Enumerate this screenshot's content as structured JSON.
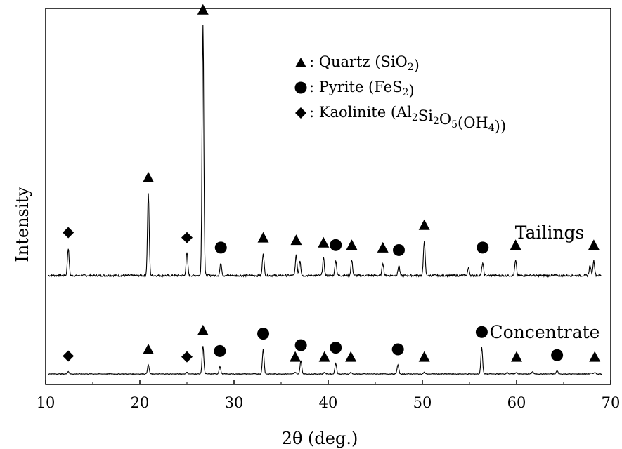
{
  "chart_data": {
    "type": "line",
    "xlabel": "2θ (deg.)",
    "ylabel": "Intensity",
    "xlim": [
      10,
      70
    ],
    "xticks": [
      "10",
      "20",
      "30",
      "40",
      "50",
      "60",
      "70"
    ],
    "y_ticks_shown": false,
    "grid": false,
    "legend": {
      "placement": "top-center",
      "entries": [
        {
          "marker": "triangle",
          "label": "Quartz",
          "formula_html": "(SiO<sub>2</sub>)"
        },
        {
          "marker": "circle",
          "label": "Pyrite",
          "formula_html": "(FeS<sub>2</sub>)"
        },
        {
          "marker": "diamond",
          "label": "Kaolinite",
          "formula_html": "(Al<sub>2</sub>Si<sub>2</sub>O<sub>5</sub>(OH<sub>4</sub>))"
        }
      ]
    },
    "series": [
      {
        "name": "Tailings",
        "baseline": 0.04,
        "peaks": [
          {
            "x": 12.4,
            "y": 0.11,
            "phase": "diamond"
          },
          {
            "x": 20.9,
            "y": 0.33,
            "phase": "triangle"
          },
          {
            "x": 25.0,
            "y": 0.09,
            "phase": "diamond"
          },
          {
            "x": 26.7,
            "y": 1.0,
            "phase": "triangle"
          },
          {
            "x": 28.6,
            "y": 0.05,
            "phase": "circle"
          },
          {
            "x": 33.1,
            "y": 0.09,
            "phase": "triangle"
          },
          {
            "x": 36.6,
            "y": 0.08,
            "phase": "triangle"
          },
          {
            "x": 37.0,
            "y": 0.06,
            "phase": null
          },
          {
            "x": 39.5,
            "y": 0.07,
            "phase": "triangle"
          },
          {
            "x": 40.8,
            "y": 0.06,
            "phase": "circle"
          },
          {
            "x": 42.5,
            "y": 0.06,
            "phase": "triangle"
          },
          {
            "x": 45.8,
            "y": 0.05,
            "phase": "triangle"
          },
          {
            "x": 47.5,
            "y": 0.04,
            "phase": "circle"
          },
          {
            "x": 50.2,
            "y": 0.14,
            "phase": "triangle"
          },
          {
            "x": 54.9,
            "y": 0.03,
            "phase": null
          },
          {
            "x": 56.4,
            "y": 0.05,
            "phase": "circle"
          },
          {
            "x": 59.9,
            "y": 0.06,
            "phase": "triangle"
          },
          {
            "x": 67.8,
            "y": 0.04,
            "phase": null
          },
          {
            "x": 68.2,
            "y": 0.06,
            "phase": "triangle"
          }
        ]
      },
      {
        "name": "Concentrate",
        "baseline": 0.0,
        "peaks": [
          {
            "x": 12.4,
            "y": 0.03,
            "phase": "diamond"
          },
          {
            "x": 20.9,
            "y": 0.11,
            "phase": "triangle"
          },
          {
            "x": 25.0,
            "y": 0.02,
            "phase": "diamond"
          },
          {
            "x": 26.7,
            "y": 0.34,
            "phase": "triangle"
          },
          {
            "x": 28.5,
            "y": 0.09,
            "phase": "circle"
          },
          {
            "x": 33.1,
            "y": 0.3,
            "phase": "circle"
          },
          {
            "x": 36.5,
            "y": 0.02,
            "phase": "triangle"
          },
          {
            "x": 37.1,
            "y": 0.16,
            "phase": "circle"
          },
          {
            "x": 39.6,
            "y": 0.02,
            "phase": "triangle"
          },
          {
            "x": 40.8,
            "y": 0.13,
            "phase": "circle"
          },
          {
            "x": 42.4,
            "y": 0.02,
            "phase": "triangle"
          },
          {
            "x": 47.4,
            "y": 0.11,
            "phase": "circle"
          },
          {
            "x": 50.2,
            "y": 0.02,
            "phase": "triangle"
          },
          {
            "x": 56.3,
            "y": 0.32,
            "phase": "circle"
          },
          {
            "x": 59.0,
            "y": 0.02,
            "phase": null
          },
          {
            "x": 60.0,
            "y": 0.02,
            "phase": "triangle"
          },
          {
            "x": 61.7,
            "y": 0.03,
            "phase": null
          },
          {
            "x": 64.3,
            "y": 0.04,
            "phase": "circle"
          },
          {
            "x": 67.9,
            "y": 0.01,
            "phase": null
          },
          {
            "x": 68.3,
            "y": 0.02,
            "phase": "triangle"
          }
        ]
      }
    ]
  }
}
